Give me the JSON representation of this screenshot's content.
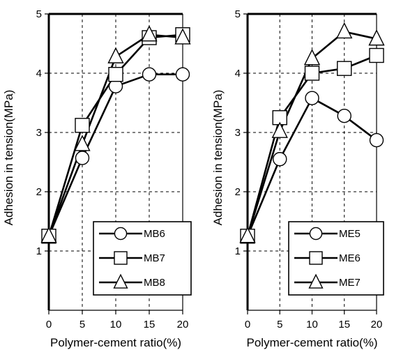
{
  "chart_data": [
    {
      "type": "line",
      "xlabel": "Polymer-cement ratio(%)",
      "ylabel": "Adhesion in tension(MPa)",
      "xlim": [
        0,
        20
      ],
      "ylim": [
        0,
        5
      ],
      "xticks": [
        0,
        5,
        10,
        15,
        20
      ],
      "yticks": [
        1,
        2,
        3,
        4,
        5
      ],
      "grid": "dashed",
      "legend_position": "bottom-right",
      "x": [
        0,
        5,
        10,
        15,
        20
      ],
      "series": [
        {
          "name": "MB6",
          "marker": "circle",
          "values": [
            1.25,
            2.57,
            3.78,
            3.98,
            3.98
          ]
        },
        {
          "name": "MB7",
          "marker": "square",
          "values": [
            1.25,
            3.12,
            3.98,
            4.6,
            4.65
          ]
        },
        {
          "name": "MB8",
          "marker": "triangle",
          "values": [
            1.25,
            2.8,
            4.28,
            4.65,
            4.6
          ]
        }
      ]
    },
    {
      "type": "line",
      "xlabel": "Polymer-cement ratio(%)",
      "ylabel": "Adhesion in tension(MPa)",
      "xlim": [
        0,
        20
      ],
      "ylim": [
        0,
        5
      ],
      "xticks": [
        0,
        5,
        10,
        15,
        20
      ],
      "yticks": [
        1,
        2,
        3,
        4,
        5
      ],
      "grid": "dashed",
      "legend_position": "bottom-right",
      "x": [
        0,
        5,
        10,
        15,
        20
      ],
      "series": [
        {
          "name": "ME5",
          "marker": "circle",
          "values": [
            1.25,
            2.55,
            3.58,
            3.28,
            2.87
          ]
        },
        {
          "name": "ME6",
          "marker": "square",
          "values": [
            1.25,
            3.25,
            4.0,
            4.08,
            4.3
          ]
        },
        {
          "name": "ME7",
          "marker": "triangle",
          "values": [
            1.25,
            3.02,
            4.25,
            4.7,
            4.58
          ]
        }
      ]
    }
  ]
}
